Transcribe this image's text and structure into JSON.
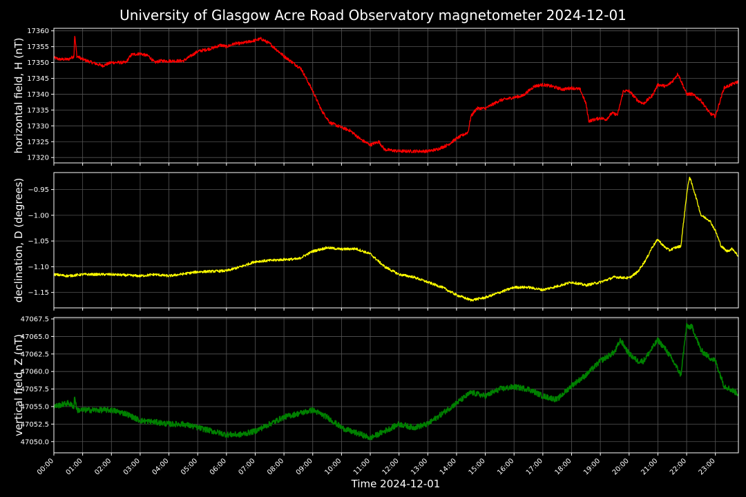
{
  "title": "University of Glasgow Acre Road Observatory magnetometer 2024-12-01",
  "xlabel": "Time 2024-12-01",
  "colors": {
    "background": "#000000",
    "grid": "#555555",
    "frame": "#ffffff",
    "h": "#ff0000",
    "d": "#ffff00",
    "z": "#008000"
  },
  "chart_data": [
    {
      "type": "line",
      "ylabel": "horizontal field, H (nT)",
      "ylim": [
        17318.3,
        17360.8
      ],
      "yticks": [
        17320,
        17325,
        17330,
        17335,
        17340,
        17345,
        17350,
        17355,
        17360
      ],
      "ytick_labels": [
        "17320",
        "17325",
        "17330",
        "17335",
        "17340",
        "17345",
        "17350",
        "17355",
        "17360"
      ],
      "xlim": [
        0,
        23.8
      ],
      "grid": true,
      "noise": 0.5,
      "series": [
        {
          "color": "#ff0000",
          "x": [
            0,
            0.2,
            0.5,
            0.7,
            0.72,
            0.8,
            1.0,
            1.5,
            1.7,
            2.0,
            2.5,
            2.7,
            3.0,
            3.3,
            3.5,
            3.7,
            4.0,
            4.5,
            5.0,
            5.5,
            5.8,
            6.0,
            6.3,
            6.5,
            7.0,
            7.2,
            7.5,
            8.0,
            8.3,
            8.6,
            9.0,
            9.3,
            9.6,
            10.0,
            10.3,
            10.7,
            11.0,
            11.3,
            11.5,
            12.0,
            12.5,
            13.0,
            13.3,
            13.7,
            14.0,
            14.2,
            14.4,
            14.5,
            14.7,
            15.0,
            15.5,
            16.0,
            16.3,
            16.7,
            17.0,
            17.3,
            17.7,
            18.0,
            18.3,
            18.5,
            18.6,
            18.8,
            19.0,
            19.2,
            19.4,
            19.6,
            19.8,
            20.0,
            20.3,
            20.5,
            20.8,
            21.0,
            21.3,
            21.5,
            21.7,
            22.0,
            22.2,
            22.5,
            22.8,
            23.0,
            23.3,
            23.8
          ],
          "y": [
            17351.5,
            17351.0,
            17351.0,
            17352.0,
            17359.0,
            17352.0,
            17351.0,
            17349.5,
            17349.0,
            17350.0,
            17350.0,
            17352.5,
            17352.8,
            17352.0,
            17350.0,
            17350.5,
            17350.5,
            17350.5,
            17353.5,
            17354.5,
            17355.5,
            17355.0,
            17356.0,
            17356.0,
            17357.0,
            17357.5,
            17356.0,
            17352.0,
            17350.0,
            17348.0,
            17341.0,
            17335.0,
            17331.0,
            17329.5,
            17328.5,
            17325.5,
            17324.0,
            17325.0,
            17322.5,
            17322.0,
            17322.0,
            17322.0,
            17322.5,
            17324.0,
            17326.0,
            17327.0,
            17328.0,
            17333.0,
            17335.5,
            17335.5,
            17338.0,
            17339.0,
            17339.5,
            17342.5,
            17343.0,
            17342.5,
            17341.5,
            17342.0,
            17341.5,
            17337.0,
            17331.5,
            17332.0,
            17332.5,
            17332.0,
            17334.0,
            17333.5,
            17341.0,
            17341.0,
            17338.0,
            17337.0,
            17339.5,
            17343.0,
            17342.5,
            17344.0,
            17346.5,
            17340.0,
            17340.0,
            17338.0,
            17334.0,
            17333.0,
            17342.0,
            17344.0
          ]
        }
      ]
    },
    {
      "type": "line",
      "ylabel": "declination, D (degrees)",
      "ylim": [
        -1.18,
        -0.917
      ],
      "yticks": [
        -1.15,
        -1.1,
        -1.05,
        -1.0,
        -0.95
      ],
      "ytick_labels": [
        "−1.15",
        "−1.10",
        "−1.05",
        "−1.00",
        "−0.95"
      ],
      "xlim": [
        0,
        23.8
      ],
      "grid": true,
      "noise": 0.0025,
      "series": [
        {
          "color": "#ffff00",
          "x": [
            0,
            0.5,
            1.0,
            2.0,
            3.0,
            3.5,
            4.0,
            5.0,
            6.0,
            6.5,
            7.0,
            7.5,
            8.0,
            8.5,
            9.0,
            9.5,
            10.0,
            10.5,
            11.0,
            11.5,
            12.0,
            12.5,
            13.0,
            13.5,
            14.0,
            14.5,
            15.0,
            15.5,
            16.0,
            16.5,
            17.0,
            17.5,
            18.0,
            18.5,
            19.0,
            19.5,
            20.0,
            20.3,
            20.6,
            20.8,
            21.0,
            21.2,
            21.4,
            21.6,
            21.8,
            22.0,
            22.1,
            22.3,
            22.5,
            22.8,
            23.0,
            23.2,
            23.4,
            23.6,
            23.8
          ],
          "y": [
            -1.115,
            -1.118,
            -1.115,
            -1.115,
            -1.118,
            -1.115,
            -1.118,
            -1.11,
            -1.108,
            -1.1,
            -1.09,
            -1.088,
            -1.086,
            -1.085,
            -1.07,
            -1.063,
            -1.066,
            -1.065,
            -1.075,
            -1.1,
            -1.115,
            -1.12,
            -1.13,
            -1.14,
            -1.155,
            -1.165,
            -1.16,
            -1.15,
            -1.14,
            -1.14,
            -1.145,
            -1.138,
            -1.13,
            -1.136,
            -1.13,
            -1.12,
            -1.122,
            -1.11,
            -1.085,
            -1.062,
            -1.047,
            -1.06,
            -1.068,
            -1.063,
            -1.06,
            -0.96,
            -0.925,
            -0.96,
            -1.0,
            -1.01,
            -1.03,
            -1.06,
            -1.07,
            -1.065,
            -1.08
          ]
        }
      ]
    },
    {
      "type": "line",
      "ylabel": "vertical field, Z (nT)",
      "ylim": [
        47048.4,
        47067.7
      ],
      "yticks": [
        47050,
        47052.5,
        47055,
        47057.5,
        47060,
        47062.5,
        47065,
        47067.5
      ],
      "ytick_labels": [
        "47050.0",
        "47052.5",
        "47055.0",
        "47057.5",
        "47060.0",
        "47062.5",
        "47065.0",
        "47067.5"
      ],
      "xlim": [
        0,
        23.8
      ],
      "grid": true,
      "noise": 0.4,
      "series": [
        {
          "color": "#008000",
          "x": [
            0,
            0.5,
            0.7,
            0.72,
            0.8,
            1.0,
            2.0,
            2.5,
            3.0,
            3.5,
            4.0,
            4.5,
            5.0,
            5.5,
            6.0,
            6.5,
            7.0,
            7.5,
            8.0,
            8.5,
            9.0,
            9.5,
            10.0,
            10.3,
            10.7,
            11.0,
            11.5,
            12.0,
            12.5,
            13.0,
            13.5,
            14.0,
            14.5,
            15.0,
            15.5,
            16.0,
            16.5,
            17.0,
            17.5,
            18.0,
            18.5,
            19.0,
            19.5,
            19.7,
            20.0,
            20.3,
            20.5,
            21.0,
            21.3,
            21.6,
            21.8,
            22.0,
            22.2,
            22.5,
            22.8,
            23.0,
            23.3,
            23.8
          ],
          "y": [
            47055.0,
            47055.5,
            47055.0,
            47056.5,
            47054.5,
            47054.5,
            47054.5,
            47054.0,
            47053.0,
            47052.8,
            47052.5,
            47052.5,
            47052.0,
            47051.5,
            47051.0,
            47051.0,
            47051.5,
            47052.5,
            47053.5,
            47054.0,
            47054.5,
            47053.5,
            47052.0,
            47051.5,
            47051.0,
            47050.5,
            47051.5,
            47052.5,
            47052.0,
            47052.5,
            47054.0,
            47055.5,
            47057.0,
            47056.5,
            47057.5,
            47057.8,
            47057.5,
            47056.5,
            47056.0,
            47058.0,
            47059.5,
            47061.5,
            47062.8,
            47064.5,
            47062.5,
            47061.5,
            47061.5,
            47064.5,
            47063.0,
            47061.0,
            47059.5,
            47066.5,
            47066.3,
            47063.0,
            47062.0,
            47061.5,
            47058.0,
            47056.8
          ]
        }
      ]
    }
  ],
  "xticks": [
    0,
    1,
    2,
    3,
    4,
    5,
    6,
    7,
    8,
    9,
    10,
    11,
    12,
    13,
    14,
    15,
    16,
    17,
    18,
    19,
    20,
    21,
    22,
    23
  ],
  "xtick_labels": [
    "00:00",
    "01:00",
    "02:00",
    "03:00",
    "04:00",
    "05:00",
    "06:00",
    "07:00",
    "08:00",
    "09:00",
    "10:00",
    "11:00",
    "12:00",
    "13:00",
    "14:00",
    "15:00",
    "16:00",
    "17:00",
    "18:00",
    "19:00",
    "20:00",
    "21:00",
    "22:00",
    "23:00"
  ]
}
